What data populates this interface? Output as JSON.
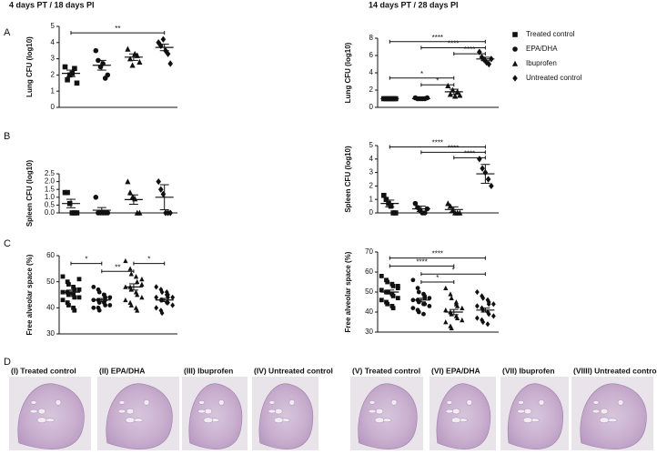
{
  "headers": [
    "4 days PT / 18 days PI",
    "14 days PT / 28 days PI"
  ],
  "panel_letters": [
    "A",
    "B",
    "C",
    "D"
  ],
  "legend": {
    "names": [
      "Treated control",
      "EPA/DHA",
      "Ibuprofen",
      "Untreated control"
    ],
    "markers": [
      "square",
      "circle",
      "triangle",
      "diamond"
    ]
  },
  "chart_data": [
    {
      "type": "strip",
      "ylabel": "Lung CFU (log10)",
      "ylim": [
        0,
        5
      ],
      "yticks": [
        0,
        1,
        2,
        3,
        4,
        5
      ],
      "groups": [
        {
          "values": [
            2.5,
            1.7,
            2.0,
            2.1,
            2.4,
            1.5
          ],
          "mean": 2.1,
          "sem": 0.2
        },
        {
          "values": [
            3.5,
            2.9,
            2.5,
            2.7,
            1.8,
            2.0
          ],
          "mean": 2.6,
          "sem": 0.3
        },
        {
          "values": [
            3.6,
            3.0,
            2.6,
            3.3,
            3.2,
            2.8
          ],
          "mean": 3.1,
          "sem": 0.2
        },
        {
          "values": [
            4.0,
            3.8,
            4.2,
            3.5,
            3.3,
            2.7
          ],
          "mean": 3.7,
          "sem": 0.2
        }
      ],
      "brackets": [
        {
          "from": 0,
          "to": 3,
          "y": 4.6,
          "label": "**"
        }
      ]
    },
    {
      "type": "strip",
      "ylabel": "Lung CFU (log10)",
      "ylim": [
        0,
        8
      ],
      "yticks": [
        0,
        2,
        4,
        6,
        8
      ],
      "legend": true,
      "groups": [
        {
          "values": [
            1.0,
            1.0,
            1.0,
            1.0,
            1.0,
            1.0
          ],
          "mean": 1.0,
          "sem": 0.02
        },
        {
          "values": [
            1.1,
            1.0,
            1.0,
            1.0,
            1.0,
            1.1
          ],
          "mean": 1.0,
          "sem": 0.02
        },
        {
          "values": [
            2.5,
            1.5,
            2.0,
            1.3,
            1.8,
            1.4
          ],
          "mean": 1.8,
          "sem": 0.3
        },
        {
          "values": [
            6.4,
            5.8,
            5.5,
            5.2,
            5.0,
            5.6
          ],
          "mean": 5.6,
          "sem": 0.2
        }
      ],
      "brackets": [
        {
          "from": 0,
          "to": 3,
          "y": 7.6,
          "label": "****"
        },
        {
          "from": 1,
          "to": 3,
          "y": 6.9,
          "label": "****"
        },
        {
          "from": 2,
          "to": 3,
          "y": 6.2,
          "label": "****"
        },
        {
          "from": 0,
          "to": 2,
          "y": 3.4,
          "label": "*"
        },
        {
          "from": 1,
          "to": 2,
          "y": 2.6,
          "label": "*"
        }
      ]
    },
    {
      "type": "strip",
      "ylabel": "Spleen CFU (log10)",
      "ylim": [
        0,
        2.5
      ],
      "yticks": [
        {
          "value": 0,
          "label": "0.0"
        },
        {
          "value": 0.5,
          "label": "0.5"
        },
        {
          "value": 1,
          "label": "1.0"
        },
        {
          "value": 1.5,
          "label": "1.5"
        },
        {
          "value": 2,
          "label": "2.0"
        },
        {
          "value": 2.5,
          "label": "2.5"
        }
      ],
      "groups": [
        {
          "values": [
            1.3,
            1.3,
            0.6,
            0,
            0,
            0
          ],
          "mean": 0.6,
          "sem": 0.27
        },
        {
          "values": [
            1.0,
            0,
            0,
            0,
            0,
            0
          ],
          "mean": 0.17,
          "sem": 0.17
        },
        {
          "values": [
            2.0,
            1.3,
            1.0,
            0.9,
            0,
            0
          ],
          "mean": 0.85,
          "sem": 0.3
        },
        {
          "values": [
            2.0,
            1.5,
            1.2,
            0,
            0,
            0
          ],
          "mean": 1.0,
          "sem": 0.8
        }
      ],
      "brackets": []
    },
    {
      "type": "strip",
      "ylabel": "Spleen CFU (log10)",
      "ylim": [
        0,
        5
      ],
      "yticks": [
        0,
        1,
        2,
        3,
        4,
        5
      ],
      "groups": [
        {
          "values": [
            1.3,
            1.0,
            0.7,
            0.5,
            0,
            0
          ],
          "mean": 0.7,
          "sem": 0.25
        },
        {
          "values": [
            0.7,
            0.4,
            0.2,
            0,
            0,
            0.3
          ],
          "mean": 0.3,
          "sem": 0.2
        },
        {
          "values": [
            0.7,
            0.5,
            0.2,
            0,
            0,
            0
          ],
          "mean": 0.25,
          "sem": 0.2
        },
        {
          "values": [
            4.0,
            3.3,
            3.0,
            2.5,
            2.0
          ],
          "mean": 2.9,
          "sem": 0.7
        }
      ],
      "brackets": [
        {
          "from": 0,
          "to": 3,
          "y": 4.9,
          "label": "****"
        },
        {
          "from": 1,
          "to": 3,
          "y": 4.5,
          "label": "****"
        },
        {
          "from": 2,
          "to": 3,
          "y": 4.1,
          "label": "****"
        }
      ]
    },
    {
      "type": "strip",
      "ylabel": "Free alveolar space (%)",
      "ylim": [
        30,
        60
      ],
      "yticks": [
        30,
        40,
        50,
        60
      ],
      "groups": [
        {
          "values": [
            52,
            50,
            49,
            48,
            47,
            47,
            46,
            46,
            45,
            45,
            44,
            44,
            43,
            42,
            41,
            40,
            39,
            51
          ],
          "mean": 46,
          "sem": 0.8
        },
        {
          "values": [
            48,
            47,
            46,
            45,
            44,
            44,
            43,
            43,
            42,
            42,
            41,
            41,
            40,
            40,
            39,
            45,
            43
          ],
          "mean": 43,
          "sem": 0.6
        },
        {
          "values": [
            58,
            55,
            53,
            52,
            50,
            49,
            48,
            48,
            47,
            46,
            45,
            44,
            43,
            42,
            41,
            40,
            39,
            51
          ],
          "mean": 48,
          "sem": 1.2
        },
        {
          "values": [
            48,
            47,
            46,
            45,
            45,
            44,
            44,
            43,
            43,
            42,
            42,
            41,
            40,
            39,
            38,
            46,
            44
          ],
          "mean": 43,
          "sem": 0.6
        }
      ],
      "brackets": [
        {
          "from": 0,
          "to": 1,
          "y": 57,
          "label": "*"
        },
        {
          "from": 1,
          "to": 2,
          "y": 54,
          "label": "**"
        },
        {
          "from": 2,
          "to": 3,
          "y": 57,
          "label": "*"
        }
      ]
    },
    {
      "type": "strip",
      "ylabel": "Free alveolar space (%)",
      "ylim": [
        30,
        70
      ],
      "yticks": [
        30,
        40,
        50,
        60,
        70
      ],
      "groups": [
        {
          "values": [
            58,
            56,
            55,
            54,
            53,
            52,
            51,
            50,
            50,
            49,
            48,
            47,
            46,
            45,
            44,
            43,
            42,
            53
          ],
          "mean": 50,
          "sem": 1.0
        },
        {
          "values": [
            56,
            52,
            50,
            49,
            48,
            47,
            46,
            46,
            45,
            44,
            44,
            43,
            42,
            41,
            40,
            39,
            47
          ],
          "mean": 46,
          "sem": 0.9
        },
        {
          "values": [
            52,
            49,
            47,
            45,
            43,
            42,
            41,
            40,
            39,
            38,
            37,
            36,
            35,
            33,
            32,
            44
          ],
          "mean": 40,
          "sem": 1.3
        },
        {
          "values": [
            50,
            48,
            47,
            46,
            45,
            44,
            43,
            42,
            41,
            40,
            39,
            38,
            37,
            36,
            35,
            34,
            44
          ],
          "mean": 41,
          "sem": 1.0
        }
      ],
      "brackets": [
        {
          "from": 0,
          "to": 3,
          "y": 67,
          "label": "****"
        },
        {
          "from": 0,
          "to": 2,
          "y": 63,
          "label": "****"
        },
        {
          "from": 1,
          "to": 3,
          "y": 59,
          "label": "*"
        },
        {
          "from": 1,
          "to": 2,
          "y": 55,
          "label": "*"
        }
      ]
    }
  ],
  "histology": [
    "(I) Treated control",
    "(II) EPA/DHA",
    "(III) Ibuprofen",
    "(IV) Untreated control",
    "(V) Treated control",
    "(VI) EPA/DHA",
    "(VII) Ibuprofen",
    "(VIIII) Untreated control"
  ]
}
